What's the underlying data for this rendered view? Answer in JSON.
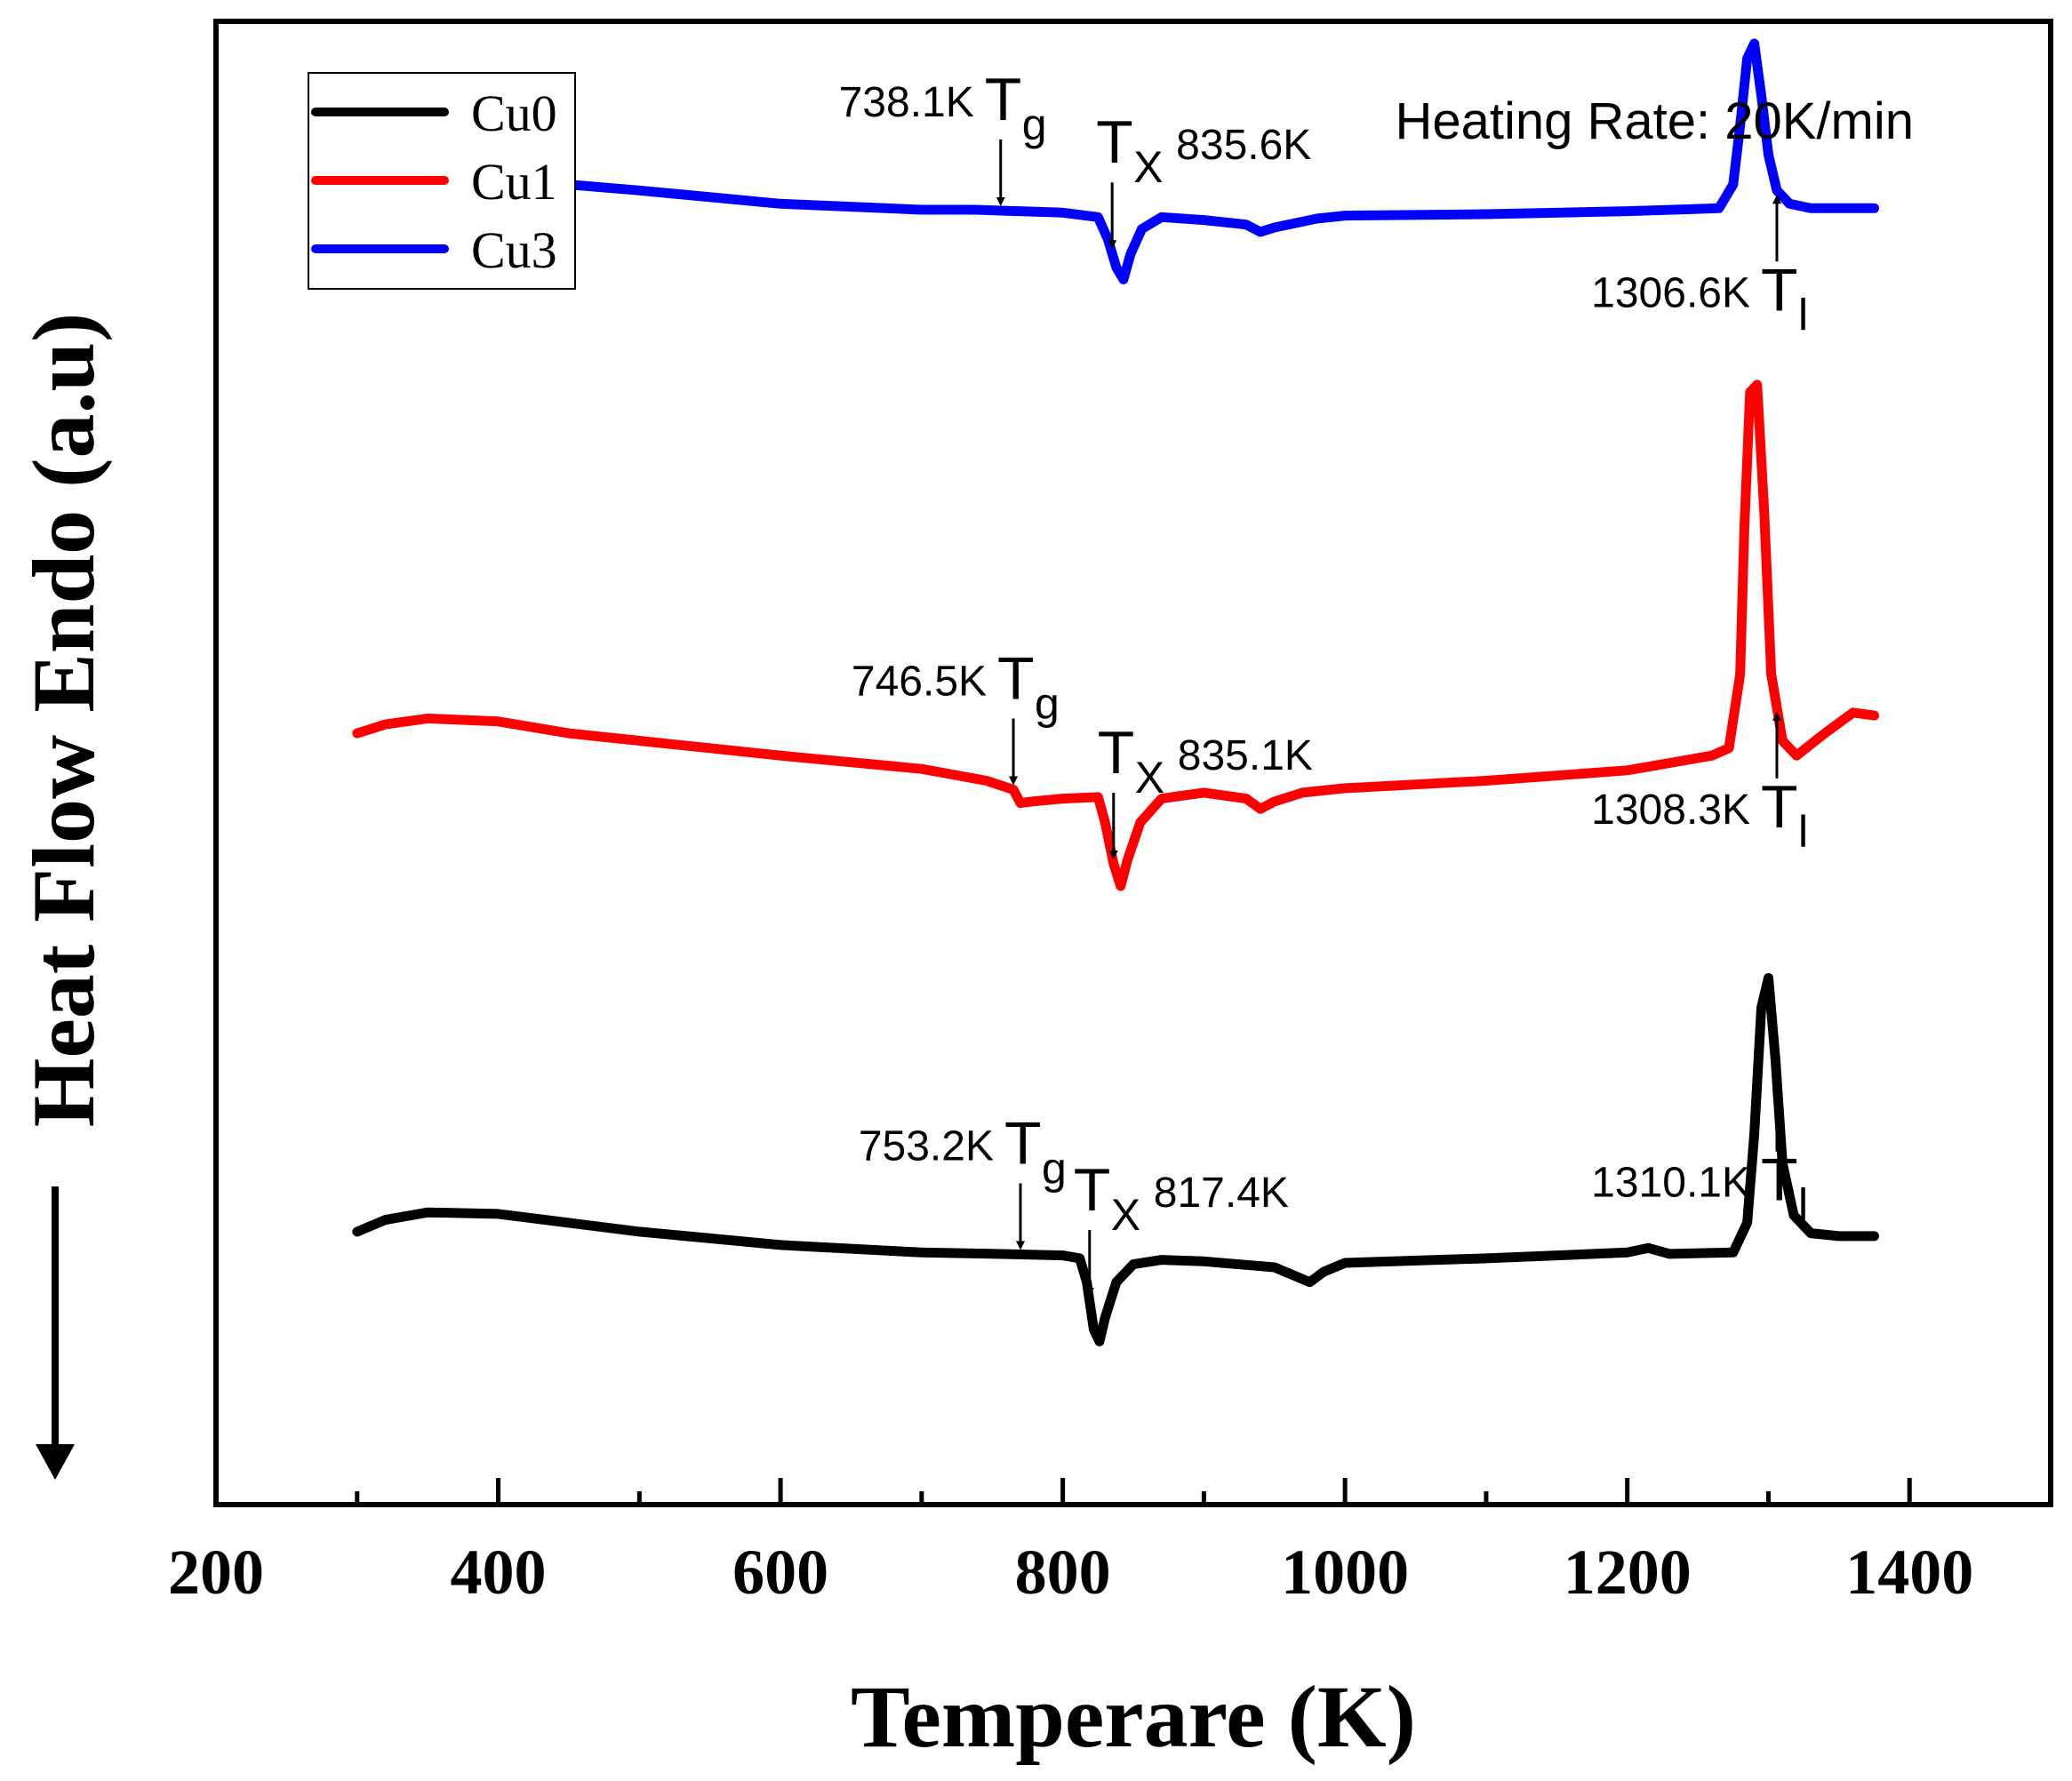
{
  "chart_data": {
    "type": "line",
    "title": "",
    "xlabel": "Temperare (K)",
    "ylabel": "Heat Flow Endo (a.u)",
    "ylabel_arrow": "down",
    "xlim": [
      200,
      1500
    ],
    "ylim": [
      0,
      100
    ],
    "xticks": [
      200,
      400,
      600,
      800,
      1000,
      1200,
      1400
    ],
    "xtick_labels": [
      "200",
      "400",
      "600",
      "800",
      "1000",
      "1200",
      "1400"
    ],
    "minor_xticks": [
      300,
      500,
      700,
      900,
      1100,
      1300
    ],
    "yticks": [],
    "grid": false,
    "legend_position": "top-left",
    "note": "Heating Rate: 20K/min",
    "series": [
      {
        "name": "Cu0",
        "color": "#000000",
        "x": [
          300,
          320,
          350,
          400,
          450,
          500,
          600,
          700,
          753,
          800,
          812,
          817,
          822,
          826,
          830,
          838,
          850,
          870,
          900,
          950,
          975,
          985,
          1000,
          1100,
          1200,
          1215,
          1230,
          1275,
          1285,
          1290,
          1295,
          1300,
          1305,
          1310,
          1318,
          1330,
          1350,
          1375
        ],
        "y": [
          18.4,
          19.2,
          19.7,
          19.6,
          19.0,
          18.4,
          17.5,
          17.0,
          16.9,
          16.8,
          16.6,
          15.0,
          11.8,
          11.0,
          12.6,
          15.0,
          16.2,
          16.5,
          16.4,
          16.0,
          15.0,
          15.7,
          16.3,
          16.6,
          17.0,
          17.3,
          16.9,
          17.0,
          19.0,
          25.0,
          33.5,
          35.5,
          30.0,
          23.0,
          19.5,
          18.3,
          18.1,
          18.1
        ]
      },
      {
        "name": "Cu1",
        "color": "#ff0000",
        "x": [
          300,
          320,
          350,
          400,
          450,
          500,
          600,
          700,
          746,
          765,
          770,
          778,
          800,
          825,
          830,
          836,
          841,
          846,
          855,
          870,
          900,
          930,
          940,
          950,
          970,
          1000,
          1100,
          1200,
          1260,
          1272,
          1280,
          1283,
          1287,
          1292,
          1297,
          1302,
          1310,
          1320,
          1340,
          1360,
          1375
        ],
        "y": [
          52.0,
          52.6,
          53.0,
          52.8,
          52.0,
          51.5,
          50.5,
          49.6,
          48.8,
          48.2,
          47.3,
          47.4,
          47.6,
          47.7,
          46.0,
          43.2,
          41.7,
          43.5,
          46.0,
          47.6,
          48.0,
          47.6,
          46.9,
          47.4,
          48.0,
          48.3,
          48.8,
          49.5,
          50.5,
          51.0,
          56.0,
          66.0,
          75.0,
          75.5,
          67.0,
          56.0,
          51.5,
          50.5,
          52.0,
          53.4,
          53.2
        ]
      },
      {
        "name": "Cu3",
        "color": "#0000ff",
        "x": [
          300,
          320,
          350,
          400,
          450,
          500,
          600,
          700,
          738,
          800,
          825,
          832,
          838,
          843,
          848,
          856,
          870,
          900,
          930,
          940,
          950,
          980,
          1000,
          1100,
          1200,
          1265,
          1275,
          1280,
          1285,
          1290,
          1295,
          1300,
          1306,
          1315,
          1330,
          1350,
          1375
        ],
        "y": [
          88.5,
          89.2,
          89.6,
          89.6,
          89.0,
          88.6,
          87.7,
          87.3,
          87.3,
          87.1,
          86.8,
          85.3,
          83.4,
          82.6,
          84.3,
          86.0,
          86.8,
          86.6,
          86.3,
          85.8,
          86.1,
          86.7,
          86.9,
          87.0,
          87.2,
          87.4,
          89.0,
          93.0,
          97.5,
          98.5,
          95.0,
          91.0,
          88.6,
          87.7,
          87.4,
          87.4,
          87.4
        ]
      }
    ],
    "annotations": [
      {
        "series": "Cu3",
        "x": 756,
        "symbol": "T",
        "sub": "g",
        "value": "738.1K",
        "arrow": "down",
        "value_side": "left"
      },
      {
        "series": "Cu3",
        "x": 835,
        "symbol": "T",
        "sub": "X",
        "value": "835.6K",
        "arrow": "down",
        "value_side": "right"
      },
      {
        "series": "Cu3",
        "x": 1306,
        "symbol": "T",
        "sub": "l",
        "value": "1306.6K",
        "arrow": "up",
        "value_side": "left"
      },
      {
        "series": "Cu1",
        "x": 765,
        "symbol": "T",
        "sub": "g",
        "value": "746.5K",
        "arrow": "down",
        "value_side": "left"
      },
      {
        "series": "Cu1",
        "x": 836,
        "symbol": "T",
        "sub": "X",
        "value": "835.1K",
        "arrow": "down",
        "value_side": "right"
      },
      {
        "series": "Cu1",
        "x": 1306,
        "symbol": "T",
        "sub": "l",
        "value": "1308.3K",
        "arrow": "up",
        "value_side": "left"
      },
      {
        "series": "Cu0",
        "x": 770,
        "symbol": "T",
        "sub": "g",
        "value": "753.2K",
        "arrow": "down",
        "value_side": "left"
      },
      {
        "series": "Cu0",
        "x": 819,
        "symbol": "T",
        "sub": "X",
        "value": "817.4K",
        "arrow": "down",
        "value_side": "right"
      },
      {
        "series": "Cu0",
        "x": 1306,
        "symbol": "T",
        "sub": "l",
        "value": "1310.1K",
        "arrow": "up",
        "value_side": "left"
      }
    ]
  }
}
